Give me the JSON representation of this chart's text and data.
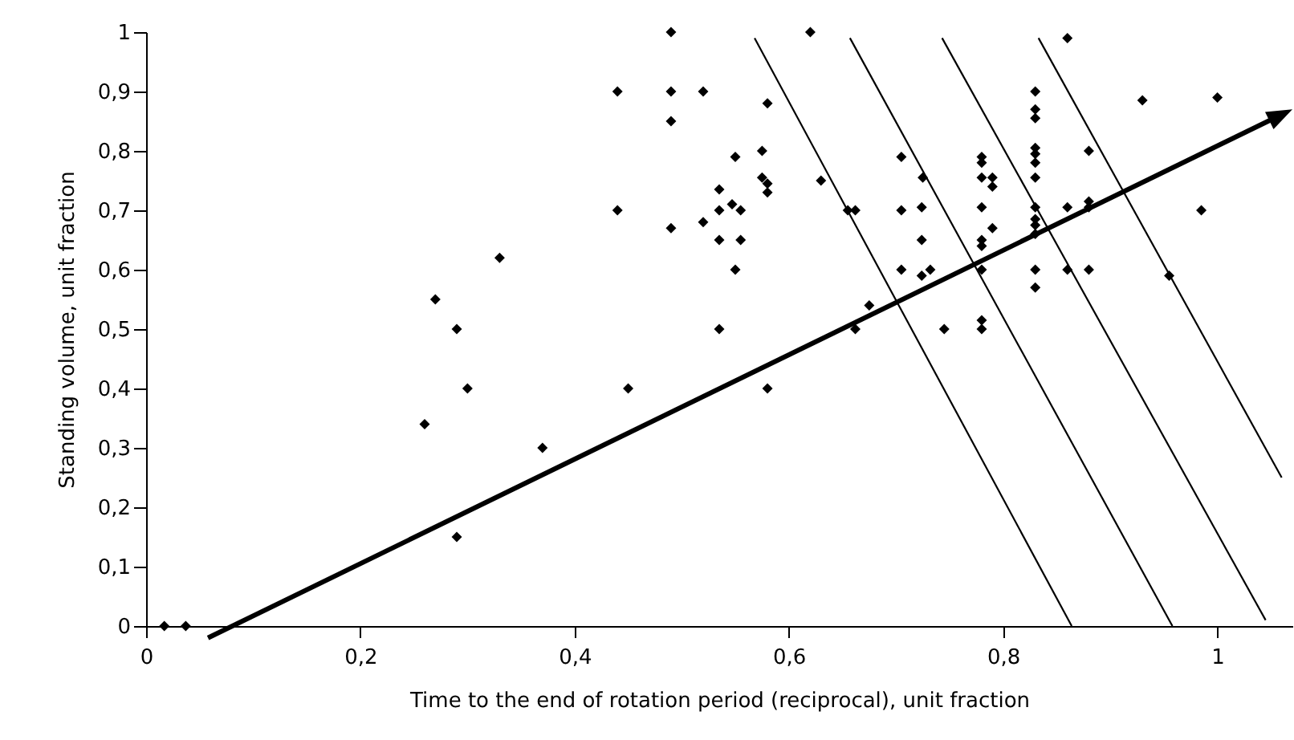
{
  "chart_data": {
    "type": "scatter",
    "xlabel": "Time to the end of rotation period (reciprocal), unit fraction",
    "ylabel": "Standing volume, unit fraction",
    "xlim": [
      0,
      1.07
    ],
    "ylim": [
      0,
      1
    ],
    "xticks": [
      0,
      {
        "value": 0.2,
        "label": "0,2"
      },
      {
        "value": 0.4,
        "label": "0,4"
      },
      {
        "value": 0.6,
        "label": "0,6"
      },
      {
        "value": 0.8,
        "label": "0,8"
      },
      1
    ],
    "yticks": [
      0,
      {
        "value": 0.1,
        "label": "0,1"
      },
      {
        "value": 0.2,
        "label": "0,2"
      },
      {
        "value": 0.3,
        "label": "0,3"
      },
      {
        "value": 0.4,
        "label": "0,4"
      },
      {
        "value": 0.5,
        "label": "0,5"
      },
      {
        "value": 0.6,
        "label": "0,6"
      },
      {
        "value": 0.7,
        "label": "0,7"
      },
      {
        "value": 0.8,
        "label": "0,8"
      },
      {
        "value": 0.9,
        "label": "0,9"
      },
      1
    ],
    "grid": false,
    "series": [
      {
        "marker": "diamond",
        "color": "#000000",
        "x": [
          0.017,
          0.037,
          0.26,
          0.27,
          0.29,
          0.29,
          0.3,
          0.33,
          0.37,
          0.44,
          0.44,
          0.45,
          0.49,
          0.49,
          0.49,
          0.49,
          0.52,
          0.52,
          0.535,
          0.535,
          0.535,
          0.535,
          0.547,
          0.55,
          0.55,
          0.555,
          0.555,
          0.575,
          0.575,
          0.58,
          0.58,
          0.58,
          0.58,
          0.62,
          0.63,
          0.655,
          0.662,
          0.662,
          0.675,
          0.705,
          0.705,
          0.705,
          0.724,
          0.724,
          0.724,
          0.725,
          0.732,
          0.745,
          0.78,
          0.78,
          0.78,
          0.78,
          0.78,
          0.78,
          0.78,
          0.78,
          0.78,
          0.79,
          0.79,
          0.79,
          0.83,
          0.83,
          0.83,
          0.83,
          0.83,
          0.83,
          0.83,
          0.83,
          0.83,
          0.83,
          0.83,
          0.83,
          0.83,
          0.86,
          0.86,
          0.86,
          0.88,
          0.88,
          0.88,
          0.88,
          0.93,
          0.955,
          0.985,
          1.0
        ],
        "values": [
          0,
          0,
          0.34,
          0.55,
          0.5,
          0.15,
          0.4,
          0.62,
          0.3,
          0.9,
          0.7,
          0.4,
          1.0,
          0.9,
          0.85,
          0.67,
          0.9,
          0.68,
          0.735,
          0.7,
          0.65,
          0.5,
          0.71,
          0.79,
          0.6,
          0.7,
          0.65,
          0.8,
          0.755,
          0.745,
          0.73,
          0.88,
          0.4,
          1.0,
          0.75,
          0.7,
          0.7,
          0.5,
          0.54,
          0.79,
          0.7,
          0.6,
          0.705,
          0.65,
          0.59,
          0.755,
          0.6,
          0.5,
          0.79,
          0.78,
          0.755,
          0.705,
          0.65,
          0.64,
          0.6,
          0.515,
          0.5,
          0.755,
          0.74,
          0.67,
          0.9,
          0.87,
          0.855,
          0.805,
          0.795,
          0.78,
          0.755,
          0.705,
          0.685,
          0.675,
          0.66,
          0.6,
          0.57,
          0.99,
          0.705,
          0.6,
          0.8,
          0.715,
          0.705,
          0.6,
          0.885,
          0.59,
          0.7,
          0.89
        ]
      },
      {
        "type": "line",
        "color": "#000000",
        "x": [
          0.568,
          0.864
        ],
        "values": [
          0.99,
          0
        ]
      },
      {
        "type": "line",
        "color": "#000000",
        "x": [
          0.657,
          0.958
        ],
        "values": [
          0.99,
          0
        ]
      },
      {
        "type": "line",
        "color": "#000000",
        "x": [
          0.743,
          1.045
        ],
        "values": [
          0.99,
          0.01
        ]
      },
      {
        "type": "line",
        "color": "#000000",
        "x": [
          0.833,
          1.06
        ],
        "values": [
          0.99,
          0.25
        ]
      }
    ]
  }
}
